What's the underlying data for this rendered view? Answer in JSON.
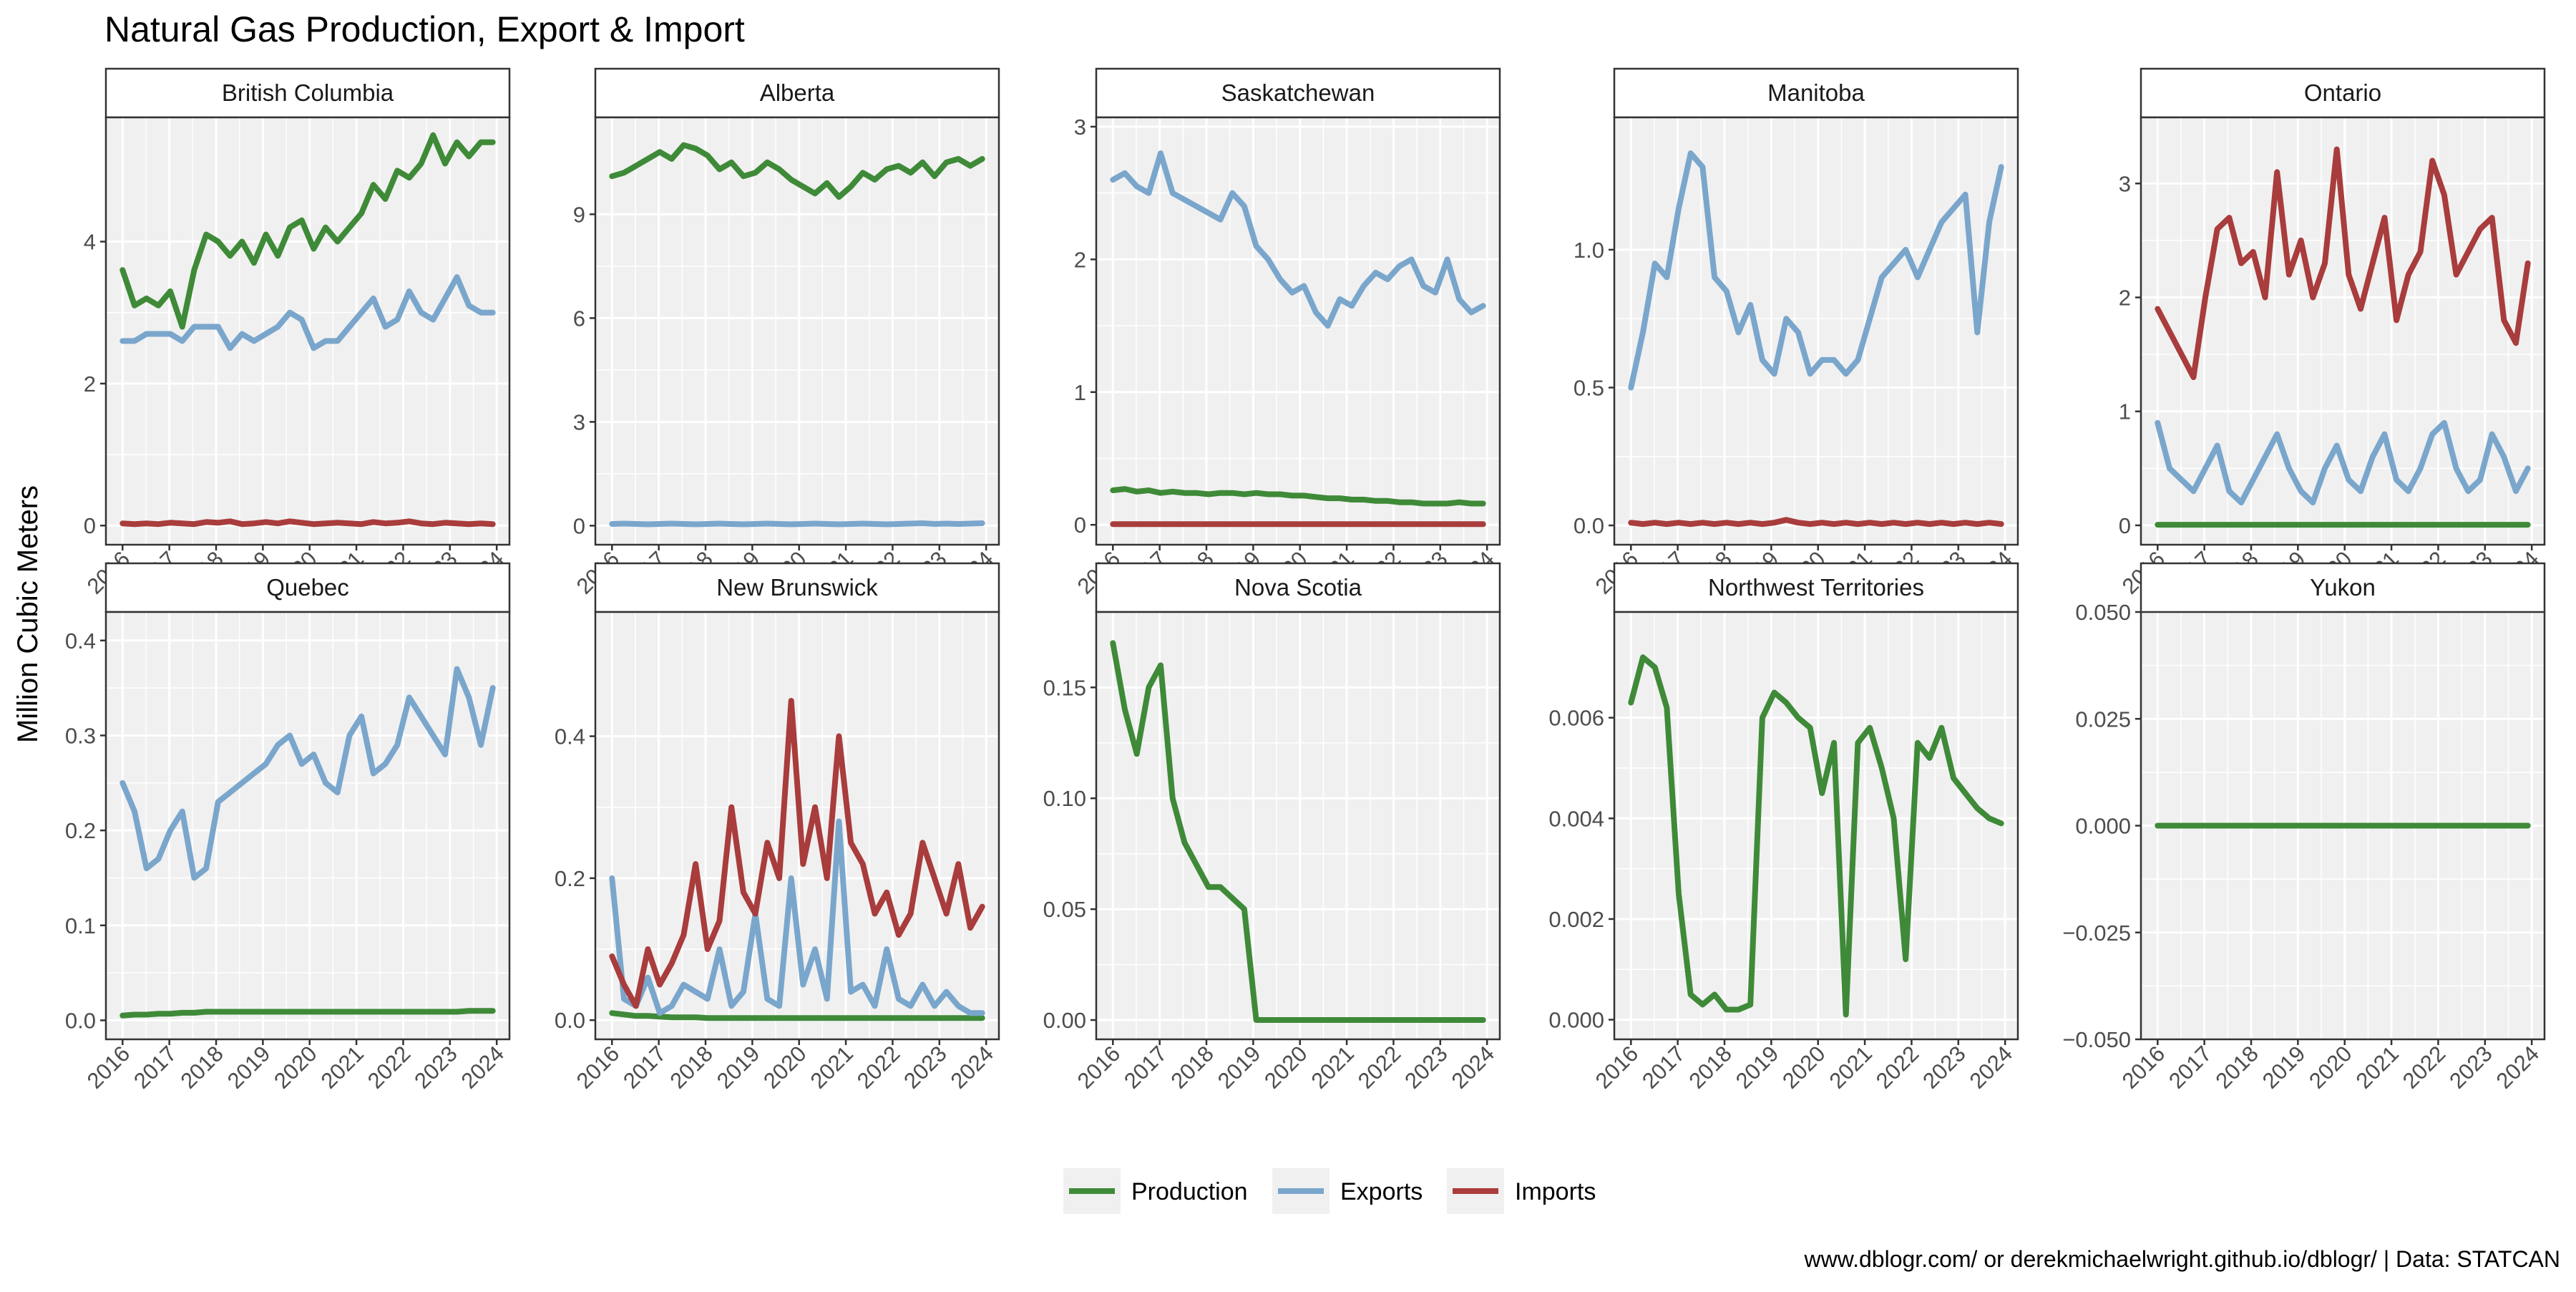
{
  "chart_data": {
    "type": "line",
    "facets": true,
    "title": "Natural Gas Production, Export & Import",
    "ylabel": "Million Cubic Meters",
    "xlabel": "",
    "x_ticks": [
      "2016",
      "2017",
      "2018",
      "2019",
      "2020",
      "2021",
      "2022",
      "2023",
      "2024"
    ],
    "x_range": [
      "2016-01",
      "2023-12"
    ],
    "grid": true,
    "legend": {
      "position": "bottom",
      "entries": [
        {
          "name": "Production",
          "color": "#3f8a38"
        },
        {
          "name": "Exports",
          "color": "#7aa6cc"
        },
        {
          "name": "Imports",
          "color": "#a93c3c"
        }
      ]
    },
    "caption": "www.dblogr.com/ or derekmichaelwright.github.io/dblogr/ | Data: STATCAN",
    "panels": [
      {
        "name": "British Columbia",
        "ylim": [
          -0.27,
          5.75
        ],
        "y_ticks": [
          0,
          2,
          4
        ],
        "y_tick_labels": [
          "0",
          "2",
          "4"
        ],
        "series": [
          {
            "name": "Production",
            "values": [
              3.6,
              3.1,
              3.2,
              3.1,
              3.3,
              2.8,
              3.6,
              4.1,
              4.0,
              3.8,
              4.0,
              3.7,
              4.1,
              3.8,
              4.2,
              4.3,
              3.9,
              4.2,
              4.0,
              4.2,
              4.4,
              4.8,
              4.6,
              5.0,
              4.9,
              5.1,
              5.5,
              5.1,
              5.4,
              5.2,
              5.4,
              5.4
            ]
          },
          {
            "name": "Exports",
            "values": [
              2.6,
              2.6,
              2.7,
              2.7,
              2.7,
              2.6,
              2.8,
              2.8,
              2.8,
              2.5,
              2.7,
              2.6,
              2.7,
              2.8,
              3.0,
              2.9,
              2.5,
              2.6,
              2.6,
              2.8,
              3.0,
              3.2,
              2.8,
              2.9,
              3.3,
              3.0,
              2.9,
              3.2,
              3.5,
              3.1,
              3.0,
              3.0
            ]
          },
          {
            "name": "Imports",
            "values": [
              0.03,
              0.02,
              0.03,
              0.02,
              0.04,
              0.03,
              0.02,
              0.05,
              0.04,
              0.06,
              0.02,
              0.03,
              0.05,
              0.03,
              0.06,
              0.04,
              0.02,
              0.03,
              0.04,
              0.03,
              0.02,
              0.05,
              0.03,
              0.04,
              0.06,
              0.03,
              0.02,
              0.04,
              0.03,
              0.02,
              0.03,
              0.02
            ]
          }
        ]
      },
      {
        "name": "Alberta",
        "ylim": [
          -0.55,
          11.8
        ],
        "y_ticks": [
          0,
          3,
          6,
          9
        ],
        "y_tick_labels": [
          "0",
          "3",
          "6",
          "9"
        ],
        "series": [
          {
            "name": "Production",
            "values": [
              10.1,
              10.2,
              10.4,
              10.6,
              10.8,
              10.6,
              11.0,
              10.9,
              10.7,
              10.3,
              10.5,
              10.1,
              10.2,
              10.5,
              10.3,
              10.0,
              9.8,
              9.6,
              9.9,
              9.5,
              9.8,
              10.2,
              10.0,
              10.3,
              10.4,
              10.2,
              10.5,
              10.1,
              10.5,
              10.6,
              10.4,
              10.6
            ]
          },
          {
            "name": "Exports",
            "values": [
              0.05,
              0.06,
              0.05,
              0.04,
              0.05,
              0.06,
              0.05,
              0.04,
              0.05,
              0.06,
              0.05,
              0.04,
              0.05,
              0.06,
              0.05,
              0.04,
              0.05,
              0.06,
              0.05,
              0.04,
              0.05,
              0.06,
              0.05,
              0.04,
              0.05,
              0.06,
              0.07,
              0.05,
              0.06,
              0.05,
              0.06,
              0.07
            ]
          }
        ]
      },
      {
        "name": "Saskatchewan",
        "ylim": [
          -0.15,
          3.07
        ],
        "y_ticks": [
          0,
          1,
          2,
          3
        ],
        "y_tick_labels": [
          "0",
          "1",
          "2",
          "3"
        ],
        "series": [
          {
            "name": "Production",
            "values": [
              0.26,
              0.27,
              0.25,
              0.26,
              0.24,
              0.25,
              0.24,
              0.24,
              0.23,
              0.24,
              0.24,
              0.23,
              0.24,
              0.23,
              0.23,
              0.22,
              0.22,
              0.21,
              0.2,
              0.2,
              0.19,
              0.19,
              0.18,
              0.18,
              0.17,
              0.17,
              0.16,
              0.16,
              0.16,
              0.17,
              0.16,
              0.16
            ]
          },
          {
            "name": "Exports",
            "values": [
              2.6,
              2.65,
              2.55,
              2.5,
              2.8,
              2.5,
              2.45,
              2.4,
              2.35,
              2.3,
              2.5,
              2.4,
              2.1,
              2.0,
              1.85,
              1.75,
              1.8,
              1.6,
              1.5,
              1.7,
              1.65,
              1.8,
              1.9,
              1.85,
              1.95,
              2.0,
              1.8,
              1.75,
              2.0,
              1.7,
              1.6,
              1.65
            ]
          },
          {
            "name": "Imports",
            "values": [
              0.005,
              0.005,
              0.005,
              0.005,
              0.005,
              0.005,
              0.005,
              0.005,
              0.005,
              0.005,
              0.005,
              0.005,
              0.005,
              0.005,
              0.005,
              0.005,
              0.005,
              0.005,
              0.005,
              0.005,
              0.005,
              0.005,
              0.005,
              0.005,
              0.005,
              0.005,
              0.005,
              0.005,
              0.005,
              0.005,
              0.005,
              0.005
            ]
          }
        ]
      },
      {
        "name": "Manitoba",
        "ylim": [
          -0.07,
          1.48
        ],
        "y_ticks": [
          0,
          0.5,
          1.0
        ],
        "y_tick_labels": [
          "0.0",
          "0.5",
          "1.0"
        ],
        "series": [
          {
            "name": "Exports",
            "values": [
              0.5,
              0.7,
              0.95,
              0.9,
              1.15,
              1.35,
              1.3,
              0.9,
              0.85,
              0.7,
              0.8,
              0.6,
              0.55,
              0.75,
              0.7,
              0.55,
              0.6,
              0.6,
              0.55,
              0.6,
              0.75,
              0.9,
              0.95,
              1.0,
              0.9,
              1.0,
              1.1,
              1.15,
              1.2,
              0.7,
              1.1,
              1.3
            ]
          },
          {
            "name": "Imports",
            "values": [
              0.01,
              0.005,
              0.01,
              0.005,
              0.01,
              0.005,
              0.01,
              0.005,
              0.01,
              0.005,
              0.01,
              0.005,
              0.01,
              0.02,
              0.01,
              0.005,
              0.01,
              0.005,
              0.01,
              0.005,
              0.01,
              0.005,
              0.01,
              0.005,
              0.01,
              0.005,
              0.01,
              0.005,
              0.01,
              0.005,
              0.01,
              0.005
            ]
          }
        ]
      },
      {
        "name": "Ontario",
        "ylim": [
          -0.17,
          3.58
        ],
        "y_ticks": [
          0,
          1,
          2,
          3
        ],
        "y_tick_labels": [
          "0",
          "1",
          "2",
          "3"
        ],
        "series": [
          {
            "name": "Production",
            "values": [
              0.005,
              0.005,
              0.005,
              0.005,
              0.005,
              0.005,
              0.005,
              0.005,
              0.005,
              0.005,
              0.005,
              0.005,
              0.005,
              0.005,
              0.005,
              0.005,
              0.005,
              0.005,
              0.005,
              0.005,
              0.005,
              0.005,
              0.005,
              0.005,
              0.005,
              0.005,
              0.005,
              0.005,
              0.005,
              0.005,
              0.005,
              0.005
            ]
          },
          {
            "name": "Exports",
            "values": [
              0.9,
              0.5,
              0.4,
              0.3,
              0.5,
              0.7,
              0.3,
              0.2,
              0.4,
              0.6,
              0.8,
              0.5,
              0.3,
              0.2,
              0.5,
              0.7,
              0.4,
              0.3,
              0.6,
              0.8,
              0.4,
              0.3,
              0.5,
              0.8,
              0.9,
              0.5,
              0.3,
              0.4,
              0.8,
              0.6,
              0.3,
              0.5
            ]
          },
          {
            "name": "Imports",
            "values": [
              1.9,
              1.7,
              1.5,
              1.3,
              2.0,
              2.6,
              2.7,
              2.3,
              2.4,
              2.0,
              3.1,
              2.2,
              2.5,
              2.0,
              2.3,
              3.3,
              2.2,
              1.9,
              2.3,
              2.7,
              1.8,
              2.2,
              2.4,
              3.2,
              2.9,
              2.2,
              2.4,
              2.6,
              2.7,
              1.8,
              1.6,
              2.3
            ]
          }
        ]
      },
      {
        "name": "Quebec",
        "ylim": [
          -0.02,
          0.43
        ],
        "y_ticks": [
          0,
          0.1,
          0.2,
          0.3,
          0.4
        ],
        "y_tick_labels": [
          "0.0",
          "0.1",
          "0.2",
          "0.3",
          "0.4"
        ],
        "series": [
          {
            "name": "Production",
            "values": [
              0.005,
              0.006,
              0.006,
              0.007,
              0.007,
              0.008,
              0.008,
              0.009,
              0.009,
              0.009,
              0.009,
              0.009,
              0.009,
              0.009,
              0.009,
              0.009,
              0.009,
              0.009,
              0.009,
              0.009,
              0.009,
              0.009,
              0.009,
              0.009,
              0.009,
              0.009,
              0.009,
              0.009,
              0.009,
              0.01,
              0.01,
              0.01
            ]
          },
          {
            "name": "Exports",
            "values": [
              0.25,
              0.22,
              0.16,
              0.17,
              0.2,
              0.22,
              0.15,
              0.16,
              0.23,
              0.24,
              0.25,
              0.26,
              0.27,
              0.29,
              0.3,
              0.27,
              0.28,
              0.25,
              0.24,
              0.3,
              0.32,
              0.26,
              0.27,
              0.29,
              0.34,
              0.32,
              0.3,
              0.28,
              0.37,
              0.34,
              0.29,
              0.35
            ]
          }
        ]
      },
      {
        "name": "New Brunswick",
        "ylim": [
          -0.027,
          0.575
        ],
        "y_ticks": [
          0,
          0.2,
          0.4
        ],
        "y_tick_labels": [
          "0.0",
          "0.2",
          "0.4"
        ],
        "series": [
          {
            "name": "Production",
            "values": [
              0.01,
              0.008,
              0.006,
              0.006,
              0.005,
              0.004,
              0.004,
              0.004,
              0.003,
              0.003,
              0.003,
              0.003,
              0.003,
              0.003,
              0.003,
              0.003,
              0.003,
              0.003,
              0.003,
              0.003,
              0.003,
              0.003,
              0.003,
              0.003,
              0.003,
              0.003,
              0.003,
              0.003,
              0.003,
              0.003,
              0.003,
              0.003
            ]
          },
          {
            "name": "Exports",
            "values": [
              0.2,
              0.03,
              0.02,
              0.06,
              0.01,
              0.02,
              0.05,
              0.04,
              0.03,
              0.1,
              0.02,
              0.04,
              0.15,
              0.03,
              0.02,
              0.2,
              0.05,
              0.1,
              0.03,
              0.28,
              0.04,
              0.05,
              0.02,
              0.1,
              0.03,
              0.02,
              0.05,
              0.02,
              0.04,
              0.02,
              0.01,
              0.01
            ]
          },
          {
            "name": "Imports",
            "values": [
              0.09,
              0.05,
              0.02,
              0.1,
              0.05,
              0.08,
              0.12,
              0.22,
              0.1,
              0.14,
              0.3,
              0.18,
              0.15,
              0.25,
              0.2,
              0.45,
              0.22,
              0.3,
              0.2,
              0.4,
              0.25,
              0.22,
              0.15,
              0.18,
              0.12,
              0.15,
              0.25,
              0.2,
              0.15,
              0.22,
              0.13,
              0.16
            ]
          }
        ]
      },
      {
        "name": "Nova Scotia",
        "ylim": [
          -0.0087,
          0.184
        ],
        "y_ticks": [
          0,
          0.05,
          0.1,
          0.15
        ],
        "y_tick_labels": [
          "0.00",
          "0.05",
          "0.10",
          "0.15"
        ],
        "series": [
          {
            "name": "Production",
            "values": [
              0.17,
              0.14,
              0.12,
              0.15,
              0.16,
              0.1,
              0.08,
              0.07,
              0.06,
              0.06,
              0.055,
              0.05,
              0.0,
              0.0,
              0.0,
              0.0,
              0.0,
              0.0,
              0.0,
              0.0,
              0.0,
              0.0,
              0.0,
              0.0,
              0.0,
              0.0,
              0.0,
              0.0,
              0.0,
              0.0,
              0.0,
              0.0
            ]
          }
        ]
      },
      {
        "name": "Northwest Territories",
        "ylim": [
          -0.00039,
          0.0081
        ],
        "y_ticks": [
          0,
          0.002,
          0.004,
          0.006
        ],
        "y_tick_labels": [
          "0.000",
          "0.002",
          "0.004",
          "0.006"
        ],
        "series": [
          {
            "name": "Production",
            "values": [
              0.0063,
              0.0072,
              0.007,
              0.0062,
              0.0025,
              0.0005,
              0.0003,
              0.0005,
              0.0002,
              0.0002,
              0.0003,
              0.006,
              0.0065,
              0.0063,
              0.006,
              0.0058,
              0.0045,
              0.0055,
              0.0001,
              0.0055,
              0.0058,
              0.005,
              0.004,
              0.0012,
              0.0055,
              0.0052,
              0.0058,
              0.0048,
              0.0045,
              0.0042,
              0.004,
              0.0039
            ]
          }
        ]
      },
      {
        "name": "Yukon",
        "ylim": [
          -0.05,
          0.05
        ],
        "y_ticks": [
          -0.05,
          -0.025,
          0,
          0.025,
          0.05
        ],
        "y_tick_labels": [
          "−0.050",
          "−0.025",
          "0.000",
          "0.025",
          "0.050"
        ],
        "series": [
          {
            "name": "Production",
            "values": [
              0,
              0,
              0,
              0,
              0,
              0,
              0,
              0,
              0,
              0,
              0,
              0,
              0,
              0,
              0,
              0,
              0,
              0,
              0,
              0,
              0,
              0,
              0,
              0,
              0,
              0,
              0,
              0,
              0,
              0,
              0,
              0
            ]
          }
        ]
      }
    ]
  }
}
